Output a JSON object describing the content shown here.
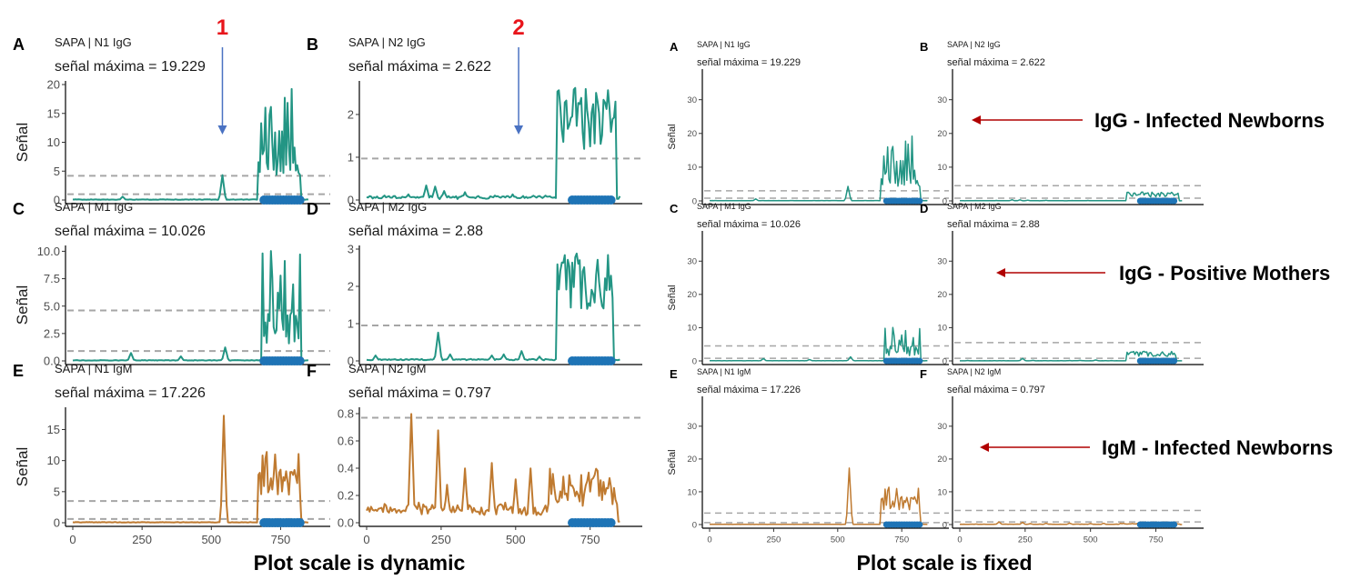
{
  "ylabel": "Señal",
  "x_ticks": [
    0,
    250,
    500,
    750
  ],
  "left_caption": "Plot scale is dynamic",
  "right_caption": "Plot scale is fixed",
  "markers": [
    {
      "label": "1",
      "color": "#e8151b",
      "panel": "A",
      "x": 540
    },
    {
      "label": "2",
      "color": "#e8151b",
      "panel": "B",
      "x": 510
    }
  ],
  "annotations": [
    {
      "text": "IgG - Infected Newborns",
      "row": 0
    },
    {
      "text": "IgG - Positive Mothers",
      "row": 1
    },
    {
      "text": "IgM - Infected Newborns",
      "row": 2
    }
  ],
  "colors": {
    "igg": "#239584",
    "igm": "#bf7a30",
    "dots": "#1e74b6",
    "threshold": "#a6a6a6",
    "arrow_blue": "#4a72c2",
    "arrow_red": "#b00000"
  },
  "chart_data": [
    {
      "type": "line",
      "group": "dynamic",
      "letter": "A",
      "subtitle": "SAPA | N1 IgG",
      "max_label": "señal máxima = 19.229",
      "color": "igg",
      "xlim": [
        0,
        870
      ],
      "ylim": [
        0,
        20
      ],
      "yticks": [
        0,
        5,
        10,
        15,
        20
      ],
      "ytick_labels": [
        "0",
        "5",
        "10",
        "15",
        "20"
      ],
      "thresholds": [
        4.2,
        1.0
      ],
      "peak": 19.229,
      "profile": "N1G",
      "dots": [
        690,
        820
      ]
    },
    {
      "type": "line",
      "group": "dynamic",
      "letter": "B",
      "subtitle": "SAPA | N2 IgG",
      "max_label": "señal máxima = 2.622",
      "color": "igg",
      "xlim": [
        0,
        870
      ],
      "ylim": [
        0,
        2.7
      ],
      "yticks": [
        0,
        1,
        2
      ],
      "ytick_labels": [
        "0",
        "1",
        "2"
      ],
      "thresholds": [
        0.97
      ],
      "peak": 2.622,
      "profile": "N2G",
      "dots": [
        690,
        820
      ]
    },
    {
      "type": "line",
      "group": "dynamic",
      "letter": "C",
      "subtitle": "SAPA | M1 IgG",
      "max_label": "señal máxima = 10.026",
      "color": "igg",
      "xlim": [
        0,
        870
      ],
      "ylim": [
        0,
        10.2
      ],
      "yticks": [
        0,
        2.5,
        5,
        7.5,
        10
      ],
      "ytick_labels": [
        "0.0",
        "2.5",
        "5.0",
        "7.5",
        "10.0"
      ],
      "thresholds": [
        4.6,
        0.9
      ],
      "peak": 10.026,
      "profile": "M1G",
      "dots": [
        690,
        820
      ]
    },
    {
      "type": "line",
      "group": "dynamic",
      "letter": "D",
      "subtitle": "SAPA | M2 IgG",
      "max_label": "señal máxima = 2.88",
      "color": "igg",
      "xlim": [
        0,
        870
      ],
      "ylim": [
        0,
        3
      ],
      "yticks": [
        0,
        1,
        2,
        3
      ],
      "ytick_labels": [
        "0",
        "1",
        "2",
        "3"
      ],
      "thresholds": [
        0.95
      ],
      "peak": 2.88,
      "profile": "M2G",
      "dots": [
        690,
        820
      ]
    },
    {
      "type": "line",
      "group": "dynamic",
      "letter": "E",
      "subtitle": "SAPA | N1 IgM",
      "max_label": "señal máxima = 17.226",
      "color": "igm",
      "xlim": [
        0,
        870
      ],
      "ylim": [
        0,
        18
      ],
      "yticks": [
        0,
        5,
        10,
        15
      ],
      "ytick_labels": [
        "0",
        "5",
        "10",
        "15"
      ],
      "thresholds": [
        3.5,
        0.6
      ],
      "peak": 17.226,
      "profile": "N1M",
      "dots": [
        690,
        820
      ]
    },
    {
      "type": "line",
      "group": "dynamic",
      "letter": "F",
      "subtitle": "SAPA | N2 IgM",
      "max_label": "señal máxima = 0.797",
      "color": "igm",
      "xlim": [
        0,
        870
      ],
      "ylim": [
        0,
        0.82
      ],
      "yticks": [
        0,
        0.2,
        0.4,
        0.6,
        0.8
      ],
      "ytick_labels": [
        "0.0",
        "0.2",
        "0.4",
        "0.6",
        "0.8"
      ],
      "thresholds": [
        0.77
      ],
      "peak": 0.797,
      "profile": "N2M",
      "dots": [
        690,
        820
      ]
    },
    {
      "type": "line",
      "group": "fixed",
      "letter": "A",
      "subtitle": "SAPA | N1 IgG",
      "max_label": "señal máxima = 19.229",
      "color": "igg",
      "xlim": [
        0,
        870
      ],
      "ylim": [
        0,
        38
      ],
      "yticks": [
        0,
        10,
        20,
        30
      ],
      "ytick_labels": [
        "0",
        "10",
        "20",
        "30"
      ],
      "thresholds": [
        3.0,
        0.8
      ],
      "peak": 19.229,
      "profile": "N1G",
      "dots": [
        690,
        820
      ]
    },
    {
      "type": "line",
      "group": "fixed",
      "letter": "B",
      "subtitle": "SAPA | N2 IgG",
      "max_label": "señal máxima = 2.622",
      "color": "igg",
      "xlim": [
        0,
        870
      ],
      "ylim": [
        0,
        38
      ],
      "yticks": [
        0,
        10,
        20,
        30
      ],
      "ytick_labels": [
        "0",
        "10",
        "20",
        "30"
      ],
      "thresholds": [
        4.5,
        0.8
      ],
      "peak": 2.622,
      "profile": "N2G",
      "dots": [
        690,
        820
      ]
    },
    {
      "type": "line",
      "group": "fixed",
      "letter": "C",
      "subtitle": "SAPA | M1 IgG",
      "max_label": "señal máxima = 10.026",
      "color": "igg",
      "xlim": [
        0,
        870
      ],
      "ylim": [
        0,
        38
      ],
      "yticks": [
        0,
        10,
        20,
        30
      ],
      "ytick_labels": [
        "0",
        "10",
        "20",
        "30"
      ],
      "thresholds": [
        4.5,
        0.8
      ],
      "peak": 10.026,
      "profile": "M1G",
      "dots": [
        690,
        820
      ]
    },
    {
      "type": "line",
      "group": "fixed",
      "letter": "D",
      "subtitle": "SAPA | M2 IgG",
      "max_label": "señal máxima = 2.88",
      "color": "igg",
      "xlim": [
        0,
        870
      ],
      "ylim": [
        0,
        38
      ],
      "yticks": [
        0,
        10,
        20,
        30
      ],
      "ytick_labels": [
        "0",
        "10",
        "20",
        "30"
      ],
      "thresholds": [
        5.5,
        0.8
      ],
      "peak": 2.88,
      "profile": "M2G",
      "dots": [
        690,
        820
      ]
    },
    {
      "type": "line",
      "group": "fixed",
      "letter": "E",
      "subtitle": "SAPA | N1 IgM",
      "max_label": "señal máxima = 17.226",
      "color": "igm",
      "xlim": [
        0,
        870
      ],
      "ylim": [
        0,
        38
      ],
      "yticks": [
        0,
        10,
        20,
        30
      ],
      "ytick_labels": [
        "0",
        "10",
        "20",
        "30"
      ],
      "thresholds": [
        3.5,
        0.6
      ],
      "peak": 17.226,
      "profile": "N1M",
      "dots": [
        690,
        820
      ]
    },
    {
      "type": "line",
      "group": "fixed",
      "letter": "F",
      "subtitle": "SAPA | N2 IgM",
      "max_label": "señal máxima = 0.797",
      "color": "igm",
      "xlim": [
        0,
        870
      ],
      "ylim": [
        0,
        38
      ],
      "yticks": [
        0,
        10,
        20,
        30
      ],
      "ytick_labels": [
        "0",
        "10",
        "20",
        "30"
      ],
      "thresholds": [
        4.3,
        0.8
      ],
      "peak": 0.797,
      "profile": "N2M",
      "dots": [
        690,
        820
      ]
    }
  ]
}
